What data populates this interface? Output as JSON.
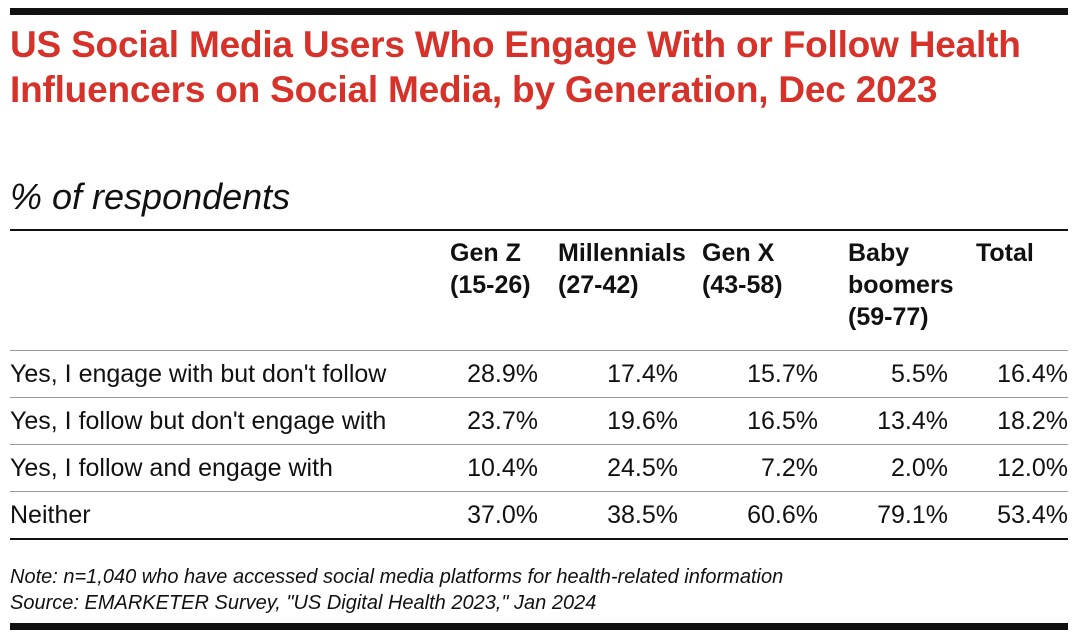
{
  "title": "US Social Media Users Who Engage With or Follow Health Influencers on Social Media, by Generation, Dec 2023",
  "subtitle": "% of respondents",
  "colors": {
    "title": "#d6322a",
    "text": "#111111",
    "rule": "#111111",
    "divider": "#9a9a9a"
  },
  "chart_data": {
    "type": "table",
    "title": "US Social Media Users Who Engage With or Follow Health Influencers on Social Media, by Generation, Dec 2023",
    "subtitle": "% of respondents",
    "columns": [
      {
        "lines": [
          "Gen Z",
          "(15-26)"
        ]
      },
      {
        "lines": [
          "Millennials",
          "(27-42)"
        ]
      },
      {
        "lines": [
          "Gen X",
          "(43-58)"
        ]
      },
      {
        "lines": [
          "Baby",
          "boomers",
          "(59-77)"
        ]
      },
      {
        "lines": [
          "Total"
        ]
      }
    ],
    "rows": [
      {
        "label": "Yes, I engage with but don't follow",
        "values": [
          "28.9%",
          "17.4%",
          "15.7%",
          "5.5%",
          "16.4%"
        ]
      },
      {
        "label": "Yes, I follow but don't engage with",
        "values": [
          "23.7%",
          "19.6%",
          "16.5%",
          "13.4%",
          "18.2%"
        ]
      },
      {
        "label": "Yes, I follow and engage with",
        "values": [
          "10.4%",
          "24.5%",
          "7.2%",
          "2.0%",
          "12.0%"
        ]
      },
      {
        "label": "Neither",
        "values": [
          "37.0%",
          "38.5%",
          "60.6%",
          "79.1%",
          "53.4%"
        ]
      }
    ]
  },
  "note": "Note: n=1,040 who have accessed social media platforms for health-related information",
  "source": "Source: EMARKETER Survey, \"US Digital Health 2023,\" Jan 2024"
}
